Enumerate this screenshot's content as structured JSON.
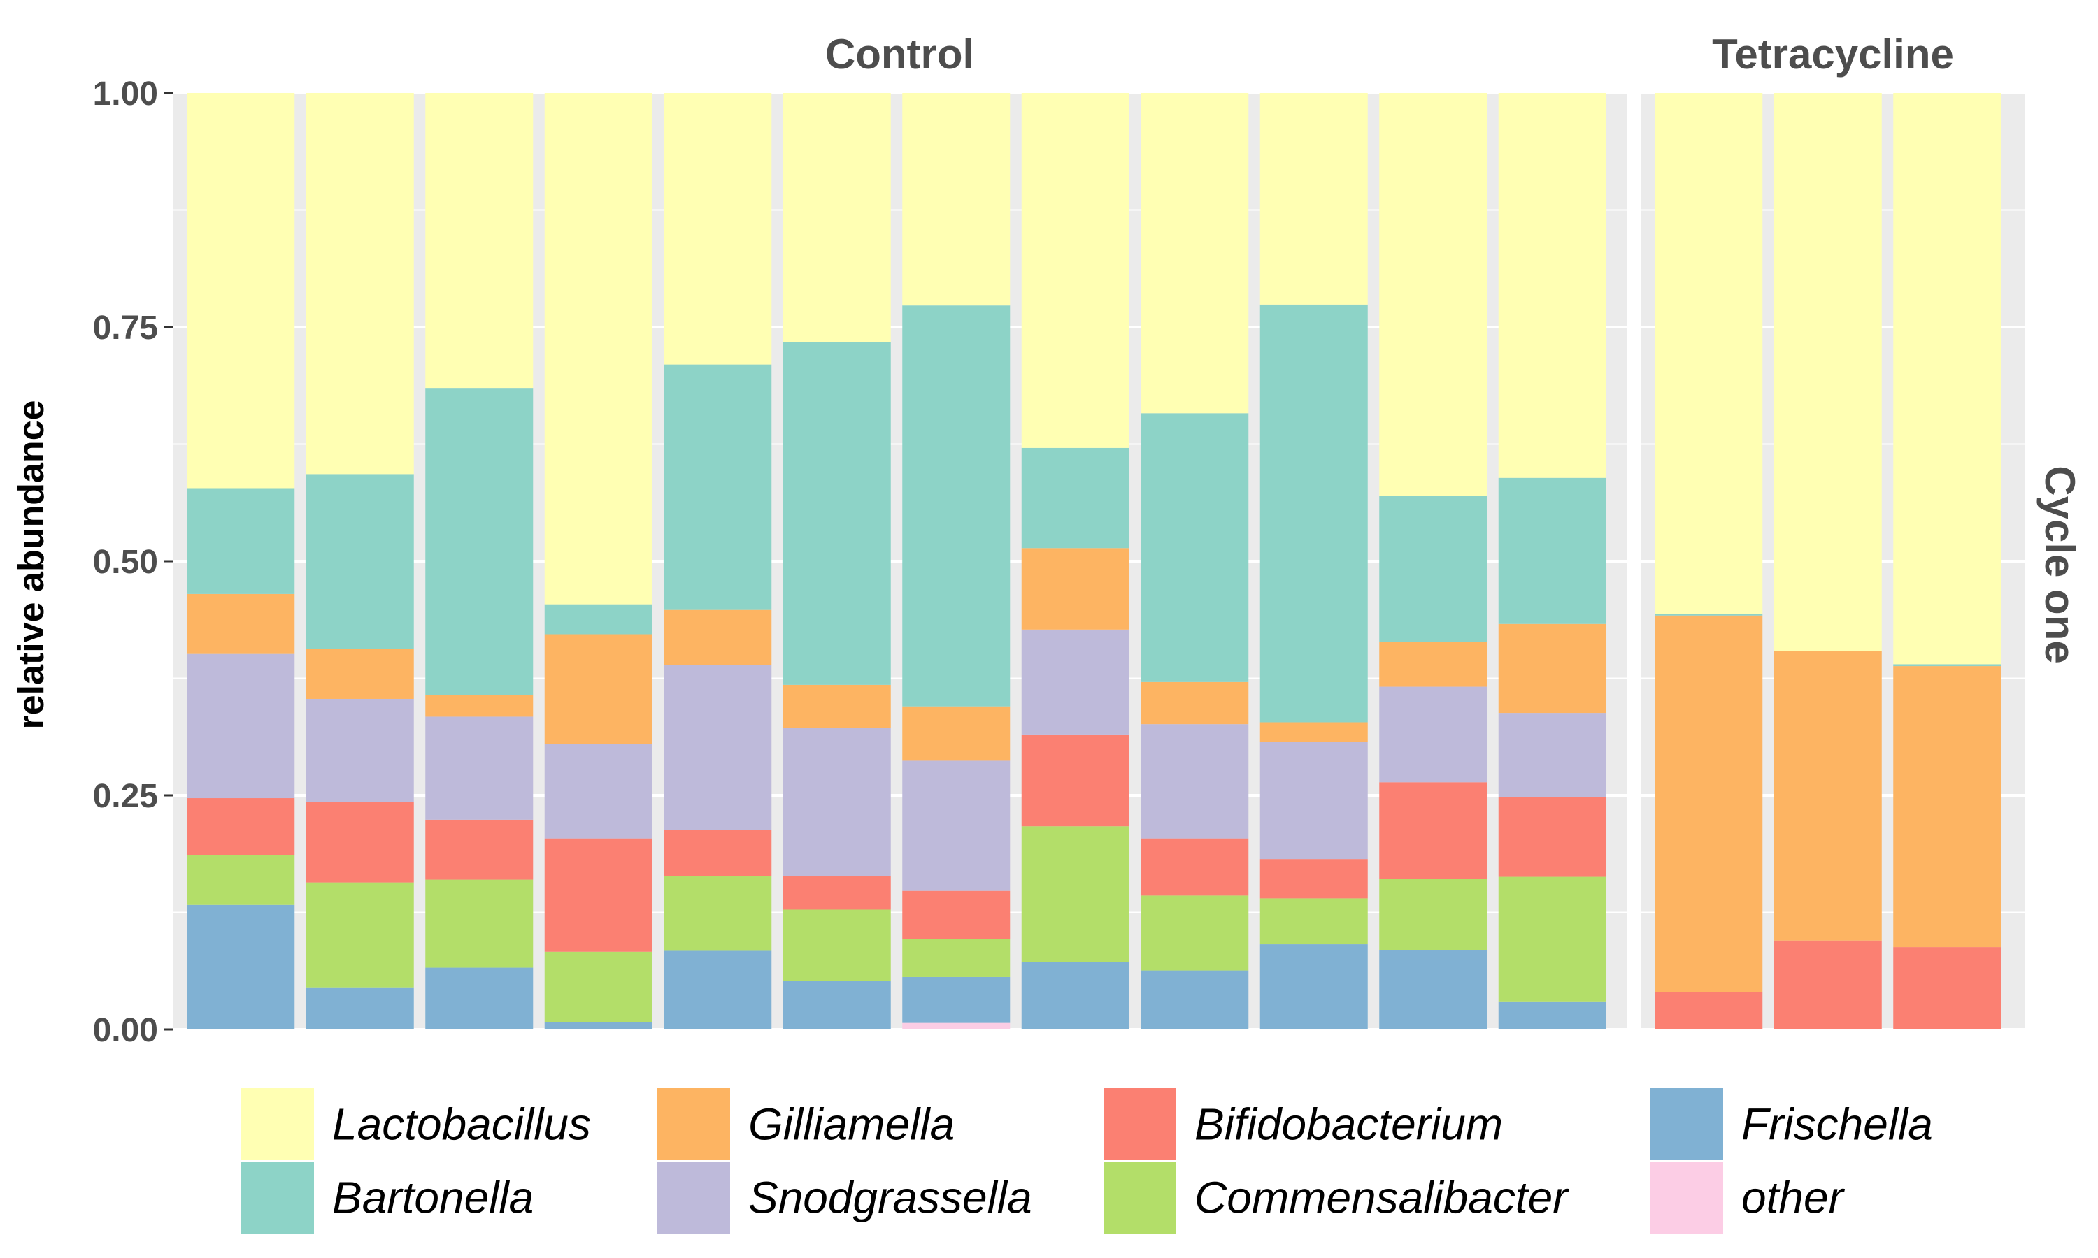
{
  "chart_data": {
    "type": "bar",
    "stacked": true,
    "ylabel": "relative abundance",
    "ylim": [
      0,
      1
    ],
    "y_ticks": [
      "0.00",
      "0.25",
      "0.50",
      "0.75",
      "1.00"
    ],
    "y_tick_values": [
      0,
      0.25,
      0.5,
      0.75,
      1.0
    ],
    "row_facet": "Cycle one",
    "legend_position": "bottom",
    "stack_order": [
      "other",
      "Frischella",
      "Commensalibacter",
      "Bifidobacterium",
      "Snodgrassella",
      "Gilliamella",
      "Bartonella",
      "Lactobacillus"
    ],
    "legend": {
      "entries": [
        "Lactobacillus",
        "Bartonella",
        "Gilliamella",
        "Snodgrassella",
        "Bifidobacterium",
        "Commensalibacter",
        "Frischella",
        "other"
      ]
    },
    "colors": {
      "Lactobacillus": "#FFFFB3",
      "Bartonella": "#8DD3C7",
      "Gilliamella": "#FDB462",
      "Snodgrassella": "#BEBADA",
      "Bifidobacterium": "#FB8072",
      "Commensalibacter": "#B3DE69",
      "Frischella": "#80B1D3",
      "other": "#FCCDE5"
    },
    "panels": [
      {
        "title": "Control",
        "samples": [
          {
            "other": 0.0,
            "Frischella": 0.133,
            "Commensalibacter": 0.053,
            "Bifidobacterium": 0.061,
            "Snodgrassella": 0.154,
            "Gilliamella": 0.064,
            "Bartonella": 0.113,
            "Lactobacillus": 0.422
          },
          {
            "other": 0.0,
            "Frischella": 0.045,
            "Commensalibacter": 0.112,
            "Bifidobacterium": 0.086,
            "Snodgrassella": 0.11,
            "Gilliamella": 0.053,
            "Bartonella": 0.187,
            "Lactobacillus": 0.407
          },
          {
            "other": 0.0,
            "Frischella": 0.066,
            "Commensalibacter": 0.094,
            "Bifidobacterium": 0.064,
            "Snodgrassella": 0.11,
            "Gilliamella": 0.023,
            "Bartonella": 0.328,
            "Lactobacillus": 0.315
          },
          {
            "other": 0.0,
            "Frischella": 0.008,
            "Commensalibacter": 0.075,
            "Bifidobacterium": 0.121,
            "Snodgrassella": 0.101,
            "Gilliamella": 0.117,
            "Bartonella": 0.032,
            "Lactobacillus": 0.546
          },
          {
            "other": 0.0,
            "Frischella": 0.084,
            "Commensalibacter": 0.08,
            "Bifidobacterium": 0.049,
            "Snodgrassella": 0.176,
            "Gilliamella": 0.059,
            "Bartonella": 0.262,
            "Lactobacillus": 0.29
          },
          {
            "other": 0.0,
            "Frischella": 0.052,
            "Commensalibacter": 0.076,
            "Bifidobacterium": 0.036,
            "Snodgrassella": 0.158,
            "Gilliamella": 0.046,
            "Bartonella": 0.366,
            "Lactobacillus": 0.266
          },
          {
            "other": 0.007,
            "Frischella": 0.049,
            "Commensalibacter": 0.041,
            "Bifidobacterium": 0.051,
            "Snodgrassella": 0.139,
            "Gilliamella": 0.058,
            "Bartonella": 0.428,
            "Lactobacillus": 0.227
          },
          {
            "other": 0.0,
            "Frischella": 0.072,
            "Commensalibacter": 0.145,
            "Bifidobacterium": 0.098,
            "Snodgrassella": 0.112,
            "Gilliamella": 0.087,
            "Bartonella": 0.107,
            "Lactobacillus": 0.379
          },
          {
            "other": 0.0,
            "Frischella": 0.063,
            "Commensalibacter": 0.08,
            "Bifidobacterium": 0.061,
            "Snodgrassella": 0.122,
            "Gilliamella": 0.045,
            "Bartonella": 0.287,
            "Lactobacillus": 0.342
          },
          {
            "other": 0.0,
            "Frischella": 0.091,
            "Commensalibacter": 0.049,
            "Bifidobacterium": 0.042,
            "Snodgrassella": 0.125,
            "Gilliamella": 0.021,
            "Bartonella": 0.446,
            "Lactobacillus": 0.226
          },
          {
            "other": 0.0,
            "Frischella": 0.085,
            "Commensalibacter": 0.076,
            "Bifidobacterium": 0.103,
            "Snodgrassella": 0.102,
            "Gilliamella": 0.048,
            "Bartonella": 0.156,
            "Lactobacillus": 0.43
          },
          {
            "other": 0.0,
            "Frischella": 0.03,
            "Commensalibacter": 0.133,
            "Bifidobacterium": 0.085,
            "Snodgrassella": 0.09,
            "Gilliamella": 0.095,
            "Bartonella": 0.156,
            "Lactobacillus": 0.411
          }
        ]
      },
      {
        "title": "Tetracycline",
        "samples": [
          {
            "other": 0.0,
            "Frischella": 0.0,
            "Commensalibacter": 0.0,
            "Bifidobacterium": 0.04,
            "Snodgrassella": 0.0,
            "Gilliamella": 0.402,
            "Bartonella": 0.002,
            "Lactobacillus": 0.556
          },
          {
            "other": 0.0,
            "Frischella": 0.0,
            "Commensalibacter": 0.0,
            "Bifidobacterium": 0.095,
            "Snodgrassella": 0.0,
            "Gilliamella": 0.309,
            "Bartonella": 0.0,
            "Lactobacillus": 0.596
          },
          {
            "other": 0.0,
            "Frischella": 0.0,
            "Commensalibacter": 0.0,
            "Bifidobacterium": 0.088,
            "Snodgrassella": 0.0,
            "Gilliamella": 0.3,
            "Bartonella": 0.002,
            "Lactobacillus": 0.61
          }
        ]
      }
    ]
  }
}
